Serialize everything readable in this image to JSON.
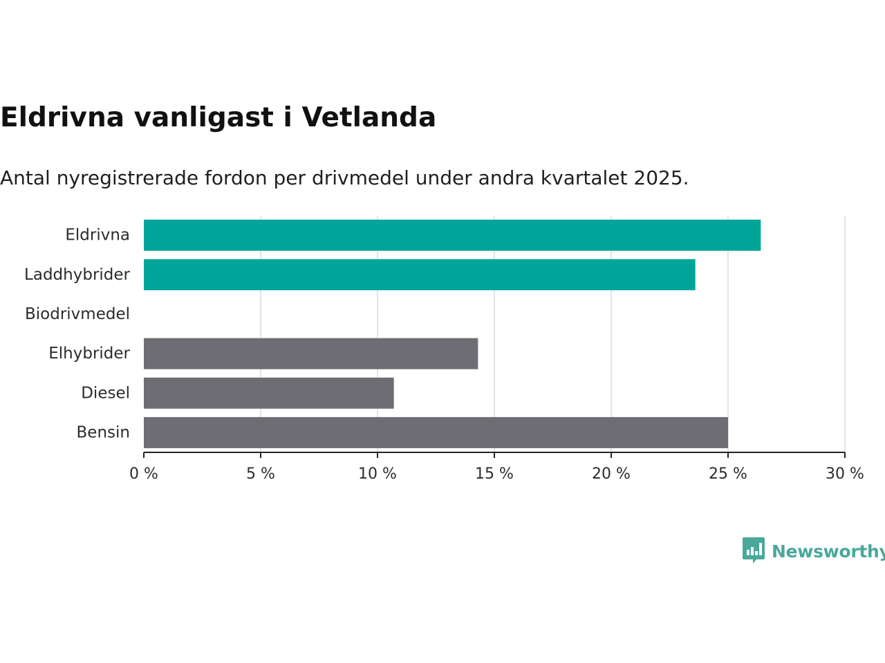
{
  "header": {
    "title": "Eldrivna vanligast i Vetlanda",
    "subtitle": "Antal nyregistrerade fordon per drivmedel under andra kvartalet 2025."
  },
  "brand": {
    "name": "Newsworthy",
    "icon": "newsworthy-logo-icon",
    "color": "#4aa89a"
  },
  "colors": {
    "highlight": "#00a59a",
    "default": "#6e6d73",
    "grid": "#dcdcdc",
    "axis": "#222222"
  },
  "chart_data": {
    "type": "bar",
    "orientation": "horizontal",
    "categories": [
      "Eldrivna",
      "Laddhybrider",
      "Biodrivmedel",
      "Elhybrider",
      "Diesel",
      "Bensin"
    ],
    "values": [
      26.4,
      23.6,
      0,
      14.3,
      10.7,
      25.0
    ],
    "bar_colors": [
      "#00a59a",
      "#00a59a",
      "#6e6d73",
      "#6e6d73",
      "#6e6d73",
      "#6e6d73"
    ],
    "xlim": [
      0,
      30
    ],
    "xticks": [
      0,
      5,
      10,
      15,
      20,
      25,
      30
    ],
    "xtick_labels": [
      "0 %",
      "5 %",
      "10 %",
      "15 %",
      "20 %",
      "25 %",
      "30 %"
    ],
    "grid": "vertical",
    "legend": "none"
  }
}
